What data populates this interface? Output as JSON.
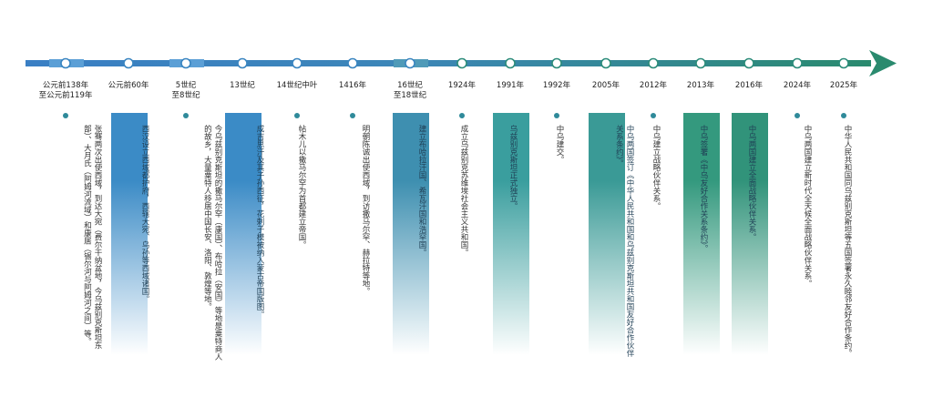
{
  "timeline": {
    "events": [
      {
        "date": [
          "公元前138年",
          "至公元前119年"
        ],
        "text": "张骞两次出使西域，到达大宛（费尔干纳盆地，今乌兹别克斯坦东部）、大月氏（阿姆河流域）和康居（锡尔河与阿姆河之间）等。",
        "highlight": false
      },
      {
        "date": [
          "公元前60年"
        ],
        "text": "西汉设立西域都护府，西辖大宛、乌孙等西域诸国。",
        "highlight": true,
        "band_color": "#3b8bc6"
      },
      {
        "date": [
          "5世纪",
          "至8世纪"
        ],
        "text": "今乌兹别克斯坦的撒马尔罕（康国）、布哈拉（安国）等地是粟特商人的故乡，大量粟特人移居中国长安、洛阳、敦煌等地。",
        "highlight": false
      },
      {
        "date": [
          "13世纪"
        ],
        "text": "成吉思汗及其子孙西征，花剌子模被纳入蒙古帝国版图。",
        "highlight": true,
        "band_color": "#3b8bc6"
      },
      {
        "date": [
          "14世纪中叶"
        ],
        "text": "帖木儿以撒马尔罕为首都建立帝国。",
        "highlight": false
      },
      {
        "date": [
          "1416年"
        ],
        "text": "明朝陈诚出使西域，到访撒马尔罕、赫拉特等地。",
        "highlight": false
      },
      {
        "date": [
          "16世纪",
          "至18世纪"
        ],
        "text": "建立布哈拉汗国、希瓦汗国和浩罕国。",
        "highlight": true,
        "band_color": "#3e8fb0"
      },
      {
        "date": [
          "1924年"
        ],
        "text": "成立乌兹别克苏维埃社会主义共和国。",
        "highlight": false
      },
      {
        "date": [
          "1991年"
        ],
        "text": "乌兹别克斯坦正式独立。",
        "highlight": true,
        "band_color": "#3a9e9e"
      },
      {
        "date": [
          "1992年"
        ],
        "text": "中乌建交。",
        "highlight": false
      },
      {
        "date": [
          "2005年"
        ],
        "text": "中乌两国签订《中华人民共和国和乌兹别克斯坦共和国友好合作伙伴关系条约》。",
        "highlight": true,
        "band_color": "#3a9a96"
      },
      {
        "date": [
          "2012年"
        ],
        "text": "中乌建立战略伙伴关系。",
        "highlight": false
      },
      {
        "date": [
          "2013年"
        ],
        "text": "中乌签署《中乌友好合作关系条约》。",
        "highlight": true,
        "band_color": "#34997e"
      },
      {
        "date": [
          "2016年"
        ],
        "text": "中乌两国建立全面战略伙伴关系。",
        "highlight": true,
        "band_color": "#31937a"
      },
      {
        "date": [
          "2024年"
        ],
        "text": "中乌两国建立新时代全天候全面战略伙伴关系。",
        "highlight": false
      },
      {
        "date": [
          "2025年"
        ],
        "text": "中华人民共和国同乌兹别克斯坦等五国签署永久睦邻友好合作条约。",
        "highlight": false
      }
    ]
  },
  "colors": {
    "axis_start": "#3a7fc4",
    "axis_end": "#2a8a6e",
    "dot": "#2f8a9a"
  }
}
